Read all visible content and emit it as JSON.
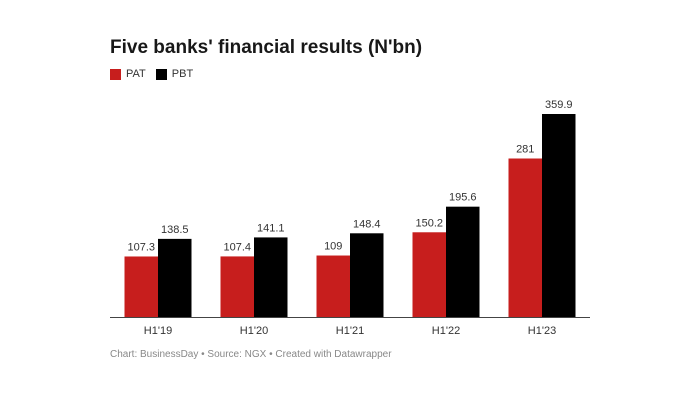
{
  "chart_data": {
    "type": "bar",
    "title": "Five banks' financial results (N'bn)",
    "categories": [
      "H1'19",
      "H1'20",
      "H1'21",
      "H1'22",
      "H1'23"
    ],
    "series": [
      {
        "name": "PAT",
        "color": "#c71e1d",
        "values": [
          107.3,
          107.4,
          109,
          150.2,
          281
        ],
        "labels": [
          "107.3",
          "107.4",
          "109",
          "150.2",
          "281"
        ]
      },
      {
        "name": "PBT",
        "color": "#000000",
        "values": [
          138.5,
          141.1,
          148.4,
          195.6,
          359.9
        ],
        "labels": [
          "138.5",
          "141.1",
          "148.4",
          "195.6",
          "359.9"
        ]
      }
    ],
    "ylim": [
      0,
      360
    ],
    "grid": false,
    "legend": "top-left"
  },
  "footer": "Chart: BusinessDay • Source: NGX • Created with Datawrapper"
}
